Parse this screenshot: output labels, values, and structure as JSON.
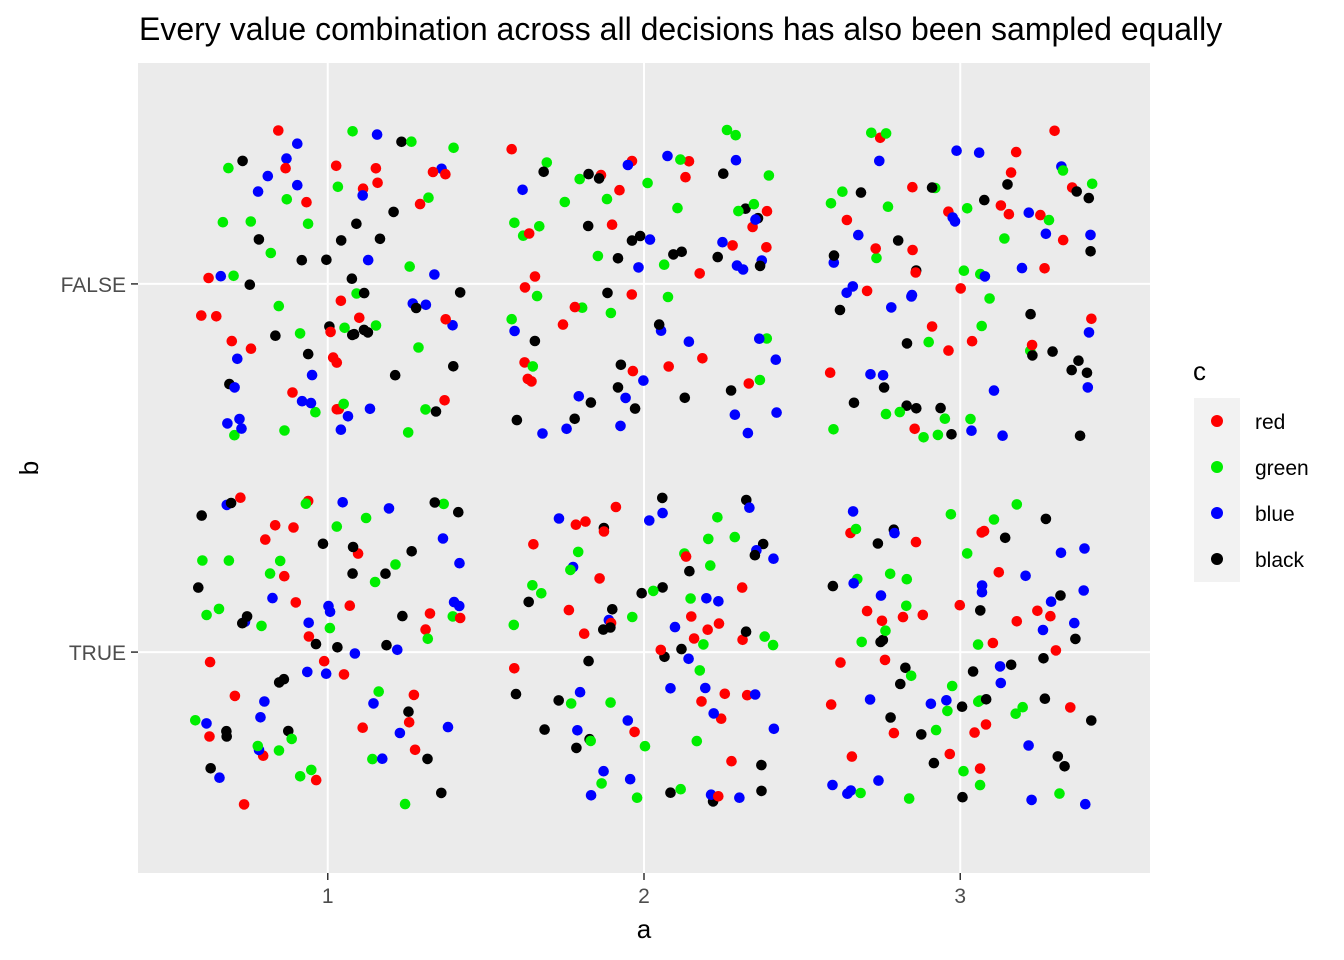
{
  "chart_data": {
    "type": "scatter",
    "title": "Every value combination across all decisions has also been sampled equally",
    "xlabel": "a",
    "ylabel": "b",
    "x_categories": [
      "1",
      "2",
      "3"
    ],
    "y_categories": [
      "FALSE",
      "TRUE"
    ],
    "jitter": 0.42,
    "points_per_cell_per_color": 25,
    "grid": true,
    "panel_background": "#ebebeb",
    "legend": {
      "title": "c",
      "position": "right",
      "entries": [
        {
          "label": "red",
          "color": "#ff0000"
        },
        {
          "label": "green",
          "color": "#00ee00"
        },
        {
          "label": "blue",
          "color": "#0000ff"
        },
        {
          "label": "black",
          "color": "#000000"
        }
      ]
    }
  }
}
